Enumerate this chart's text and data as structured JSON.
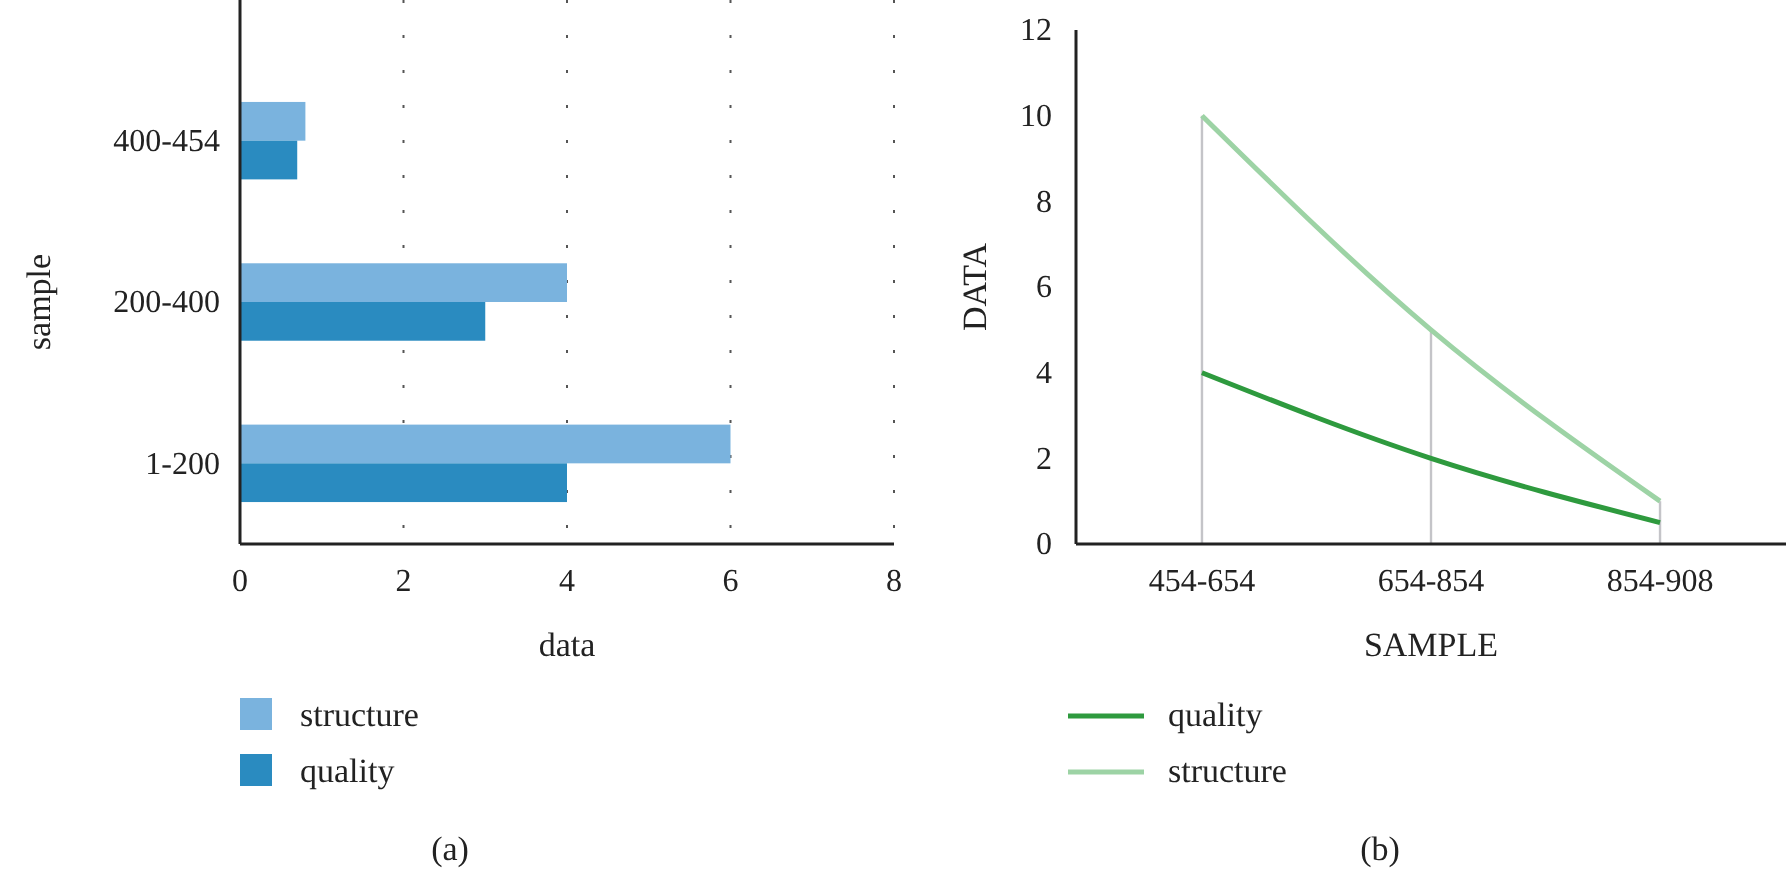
{
  "chart_data": [
    {
      "type": "bar",
      "orientation": "horizontal",
      "categories": [
        "400-454",
        "200-400",
        "1-200"
      ],
      "xlabel": "data",
      "ylabel": "sample",
      "series": [
        {
          "name": "structure",
          "color": "#7ab3de",
          "values": [
            0.8,
            4,
            6
          ]
        },
        {
          "name": "quality",
          "color": "#2a8bc0",
          "values": [
            0.7,
            3,
            4
          ]
        }
      ],
      "xlim": [
        0,
        8
      ],
      "xticks": [
        0,
        2,
        4,
        6,
        8
      ],
      "grid": "x",
      "legend": "bottom",
      "annotations": [
        "(a)"
      ]
    },
    {
      "type": "line",
      "categories": [
        "454-654",
        "654-854",
        "854-908"
      ],
      "xlabel": "SAMPLE",
      "ylabel": "DATA",
      "series": [
        {
          "name": "quality",
          "color": "#2e9a3e",
          "values": [
            4,
            2,
            0.5
          ]
        },
        {
          "name": "structure",
          "color": "#9dd3a5",
          "values": [
            10,
            5,
            1
          ]
        }
      ],
      "ylim": [
        0,
        12
      ],
      "yticks": [
        0,
        2,
        4,
        6,
        8,
        10,
        12
      ],
      "grid": "x",
      "legend": "bottom",
      "annotations": [
        "(b)"
      ]
    }
  ]
}
